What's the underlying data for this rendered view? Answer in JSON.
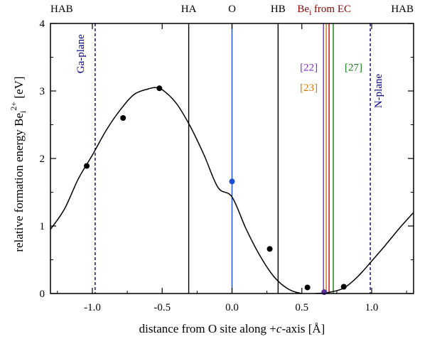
{
  "chart_data": {
    "type": "scatter",
    "xlabel_pre": "distance from O site along +",
    "xlabel_var": "c",
    "xlabel_post": "-axis [Å]",
    "ylabel_main": "relative formation energy Be",
    "ylabel_sub": "i",
    "ylabel_sup": "2+",
    "ylabel_tail": " [eV]",
    "xlim": [
      -1.3,
      1.3
    ],
    "ylim": [
      0,
      4
    ],
    "x_ticks": [
      {
        "v": -1.0,
        "label": "-1.0"
      },
      {
        "v": -0.5,
        "label": "-0.5"
      },
      {
        "v": 0.0,
        "label": "0.0"
      },
      {
        "v": 0.5,
        "label": "0.5"
      },
      {
        "v": 1.0,
        "label": "1.0"
      }
    ],
    "y_ticks": [
      {
        "v": 0,
        "label": "0"
      },
      {
        "v": 1,
        "label": "1"
      },
      {
        "v": 2,
        "label": "2"
      },
      {
        "v": 3,
        "label": "3"
      },
      {
        "v": 4,
        "label": "4"
      }
    ],
    "points": [
      {
        "x": -1.04,
        "y": 1.89
      },
      {
        "x": -0.78,
        "y": 2.6
      },
      {
        "x": -0.52,
        "y": 3.04
      },
      {
        "x": 0.0,
        "y": 1.66,
        "color": "#1a4fd6"
      },
      {
        "x": 0.27,
        "y": 0.66
      },
      {
        "x": 0.54,
        "y": 0.09
      },
      {
        "x": 0.66,
        "y": 0.02,
        "color": "#5a2ca0"
      },
      {
        "x": 0.8,
        "y": 0.1
      }
    ],
    "fit_curve": {
      "x": [
        -1.3,
        -1.2,
        -1.1,
        -1.0,
        -0.9,
        -0.8,
        -0.7,
        -0.6,
        -0.55,
        -0.5,
        -0.4,
        -0.3,
        -0.2,
        -0.1,
        0.0,
        0.1,
        0.2,
        0.3,
        0.4,
        0.5,
        0.6,
        0.7,
        0.8,
        0.9,
        1.0,
        1.1,
        1.2,
        1.3
      ],
      "y": [
        0.95,
        1.25,
        1.7,
        2.05,
        2.42,
        2.72,
        2.95,
        3.03,
        3.05,
        3.02,
        2.82,
        2.48,
        2.05,
        1.57,
        1.43,
        0.96,
        0.56,
        0.25,
        0.07,
        0.0,
        0.0,
        0.02,
        0.08,
        0.25,
        0.48,
        0.72,
        0.97,
        1.2
      ]
    },
    "vlines": [
      {
        "x": -0.98,
        "color": "#000080",
        "dashed": true
      },
      {
        "x": -0.31,
        "color": "#000000",
        "dashed": false
      },
      {
        "x": 0.0,
        "color": "#1a4fd6",
        "dashed": false
      },
      {
        "x": 0.33,
        "color": "#000000",
        "dashed": false
      },
      {
        "x": 0.655,
        "color": "#7b2fbf",
        "dashed": false
      },
      {
        "x": 0.675,
        "color": "#cc7a00",
        "dashed": false
      },
      {
        "x": 0.695,
        "color": "#cc0000",
        "dashed": false
      },
      {
        "x": 0.725,
        "color": "#1a7a1a",
        "dashed": false
      },
      {
        "x": 0.99,
        "color": "#000080",
        "dashed": true
      }
    ],
    "top_labels": [
      {
        "x": -1.3,
        "text": "HAB",
        "color": "#000000",
        "anchor": "start"
      },
      {
        "x": -0.31,
        "text": "HA",
        "color": "#000000",
        "anchor": "middle"
      },
      {
        "x": 0.0,
        "text": "O",
        "color": "#000000",
        "anchor": "middle"
      },
      {
        "x": 0.33,
        "text": "HB",
        "color": "#000000",
        "anchor": "middle"
      },
      {
        "x": 0.66,
        "text": "Be",
        "sub": "i",
        "rest": " from EC",
        "color": "#8b0000",
        "anchor": "middle"
      },
      {
        "x": 1.3,
        "text": "HAB",
        "color": "#000000",
        "anchor": "end"
      }
    ],
    "annotations": [
      {
        "x": -1.06,
        "y": 3.55,
        "text": "Ga-plane",
        "color": "#000080",
        "rotate": -90
      },
      {
        "x": 1.07,
        "y": 3.0,
        "text": "N-plane",
        "color": "#000080",
        "rotate": -90
      },
      {
        "x": 0.55,
        "y": 3.3,
        "text": "[22]",
        "color": "#7b2fbf",
        "rotate": 0
      },
      {
        "x": 0.55,
        "y": 3.0,
        "text": "[23]",
        "color": "#cc7a00",
        "rotate": 0
      },
      {
        "x": 0.87,
        "y": 3.3,
        "text": "[27]",
        "color": "#1a7a1a",
        "rotate": 0
      }
    ]
  }
}
